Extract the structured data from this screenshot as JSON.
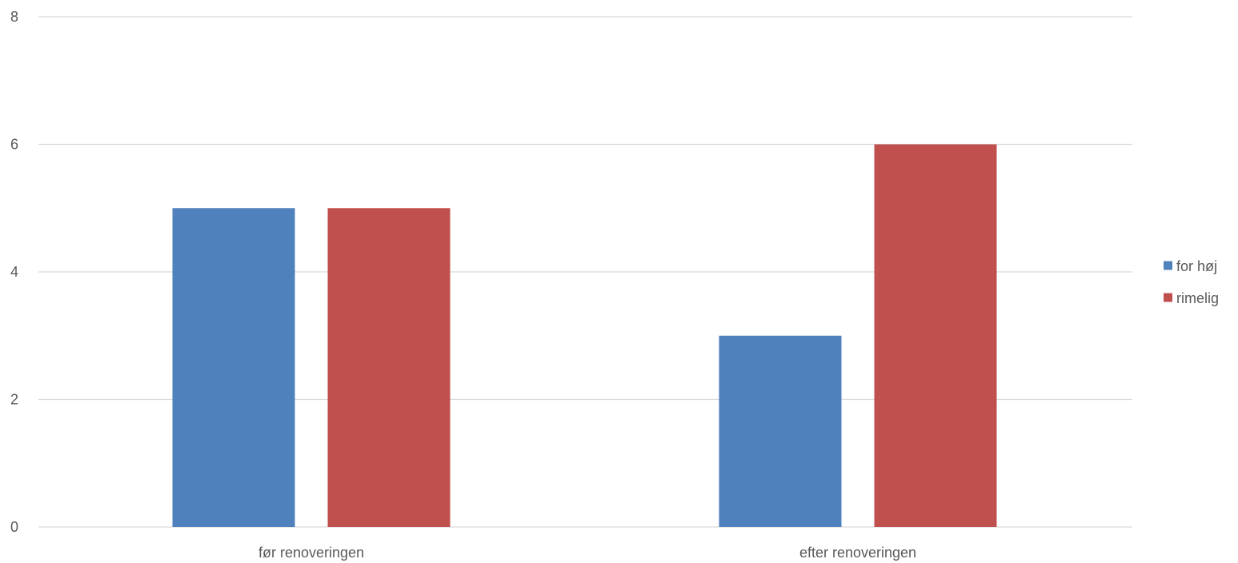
{
  "chart_data": {
    "type": "bar",
    "title": "",
    "xlabel": "",
    "ylabel": "",
    "categories": [
      "før renoveringen",
      "efter renoveringen"
    ],
    "series": [
      {
        "name": "for høj",
        "values": [
          5,
          3
        ],
        "color": "#4F81BD"
      },
      {
        "name": "rimelig",
        "values": [
          5,
          6
        ],
        "color": "#C0504D"
      }
    ],
    "ylim": [
      0,
      8
    ],
    "yticks": [
      0,
      2,
      4,
      6,
      8
    ],
    "grid": true,
    "gridColor": "#D9D9D9",
    "legend": "right"
  }
}
